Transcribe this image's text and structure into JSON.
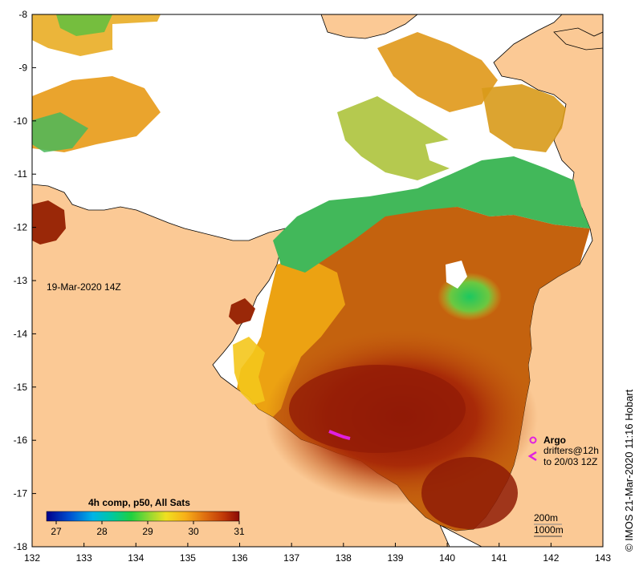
{
  "map": {
    "timestamp_label": "19-Mar-2020 14Z",
    "x_ticks": [
      "132",
      "133",
      "134",
      "135",
      "136",
      "137",
      "138",
      "139",
      "140",
      "141",
      "142",
      "143"
    ],
    "y_ticks": [
      "-8",
      "-9",
      "-10",
      "-11",
      "-12",
      "-13",
      "-14",
      "-15",
      "-16",
      "-17",
      "-18"
    ],
    "colorbar": {
      "title": "4h comp, p50, All Sats",
      "ticks": [
        "27",
        "28",
        "29",
        "30",
        "31"
      ],
      "colors": [
        "#00008b",
        "#0050d0",
        "#00b4e6",
        "#00c8a0",
        "#20d040",
        "#9ad830",
        "#f0e020",
        "#f8b018",
        "#e07010",
        "#c03808",
        "#8b0a05"
      ]
    },
    "legend": {
      "argo_label": "Argo",
      "drifters_line1": "drifters@12h",
      "drifters_line2": "to 20/03 12Z",
      "argo_color": "#e020e0"
    },
    "isobaths": {
      "label_200": "200m",
      "label_1000": "1000m"
    },
    "credit": "© IMOS 21-Mar-2020 11:16 Hobart",
    "colors": {
      "land": "#fbc995",
      "nodata": "#ffffff",
      "warm": "#b84a0c",
      "hot": "#8f1a06",
      "mid": "#e4900e",
      "cool": "#39b870"
    }
  }
}
